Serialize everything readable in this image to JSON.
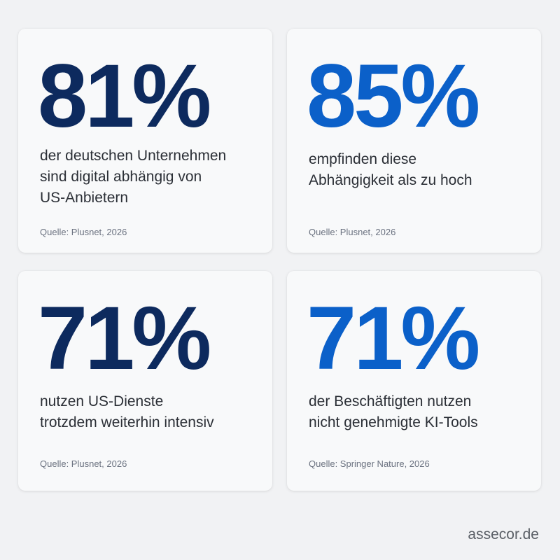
{
  "colors": {
    "background": "#f1f2f4",
    "card": "#f8f9fa",
    "dark_navy": "#0d2a5e",
    "bright_blue": "#0b60c9",
    "text": "#2b2f36",
    "muted": "#6b7280"
  },
  "cards": [
    {
      "stat": "81%",
      "description": "der deutschen Unternehmen\nsind digital abhängig von\nUS-Anbietern",
      "source": "Quelle: Plusnet, 2026"
    },
    {
      "stat": "85%",
      "description": "empfinden diese\nAbhängigkeit als zu hoch",
      "source": "Quelle: Plusnet, 2026"
    },
    {
      "stat": "71%",
      "description": "nutzen US-Dienste\ntrotzdem weiterhin intensiv",
      "source": "Quelle: Plusnet, 2026"
    },
    {
      "stat": "71%",
      "description": "der Beschäftigten nutzen\nnicht genehmigte KI-Tools",
      "source": "Quelle: Springer Nature, 2026"
    }
  ],
  "footer": {
    "brand": "assecor.de"
  }
}
